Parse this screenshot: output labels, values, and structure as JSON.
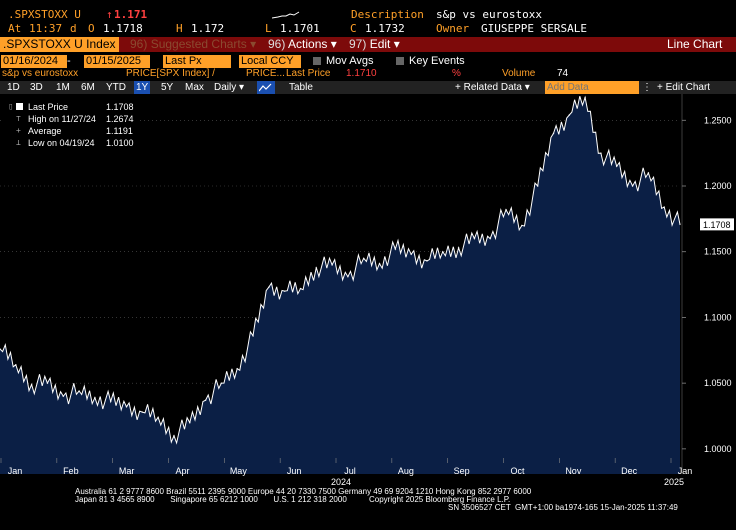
{
  "header": {
    "ticker": ".SPXSTOXX U",
    "arrow": "↑",
    "last": "1.171",
    "description_label": "Description",
    "description": "s&p vs eurostoxx",
    "time_label": "At",
    "time": "11:37",
    "d_label": "d",
    "o_label": "O",
    "open": "1.1718",
    "h_label": "H",
    "high": "1.172",
    "l_label": "L",
    "low": "1.1701",
    "c_label": "C",
    "close": "1.1732",
    "owner_label": "Owner",
    "owner": "GIUSEPPE SERSALE"
  },
  "cmdbar": {
    "security": ".SPXSTOXX U Index",
    "suggested_num": "96)",
    "suggested_label": "Suggested Charts",
    "actions_num": "96)",
    "actions_label": "Actions",
    "edit_num": "97)",
    "edit_label": "Edit",
    "chart_type": "Line Chart"
  },
  "settings": {
    "start_date": "01/16/2024",
    "end_date": "01/15/2025",
    "field": "Last Px",
    "currency": "Local CCY",
    "mov_avgs": "Mov Avgs",
    "key_events": "Key Events"
  },
  "series_bar": {
    "name": "s&p vs eurostoxx",
    "formula": "PRICE[SPX Index] /",
    "formula2": "PRICE...",
    "last_label": "Last Price",
    "last_value": "1.1710",
    "pct": "%",
    "volume_label": "Volume",
    "volume_value": "74"
  },
  "toolbar": {
    "periods": [
      "1D",
      "3D",
      "1M",
      "6M",
      "YTD",
      "1Y",
      "5Y",
      "Max"
    ],
    "selected_period": "1Y",
    "frequency": "Daily",
    "table_label": "Table",
    "related_data": "Related Data",
    "add_data_placeholder": "Add Data",
    "edit_chart": "Edit Chart"
  },
  "legend": {
    "last_price_label": "Last Price",
    "last_price": "1.1708",
    "high_label": "High on 11/27/24",
    "high": "1.2674",
    "average_label": "Average",
    "average": "1.1191",
    "low_label": "Low on 04/19/24",
    "low": "1.0100"
  },
  "chart_data": {
    "type": "area",
    "title": "",
    "xlabel": "",
    "ylabel": "",
    "ylim": [
      0.99,
      1.27
    ],
    "yticks": [
      "1.2500",
      "1.2000",
      "1.1500",
      "1.1000",
      "1.0500",
      "1.0000"
    ],
    "ytick_values": [
      1.25,
      1.2,
      1.15,
      1.1,
      1.05,
      1.0
    ],
    "month_labels": [
      "Jan",
      "Feb",
      "Mar",
      "Apr",
      "May",
      "Jun",
      "Jul",
      "Aug",
      "Sep",
      "Oct",
      "Nov",
      "Dec",
      "Jan"
    ],
    "year_labels": [
      "2024",
      "2025"
    ],
    "last_label": "1.1708",
    "colors": {
      "fill": "#0b1f45",
      "line": "#ffffff",
      "label_bg": "#ffffff"
    },
    "x": [
      "01/16/24",
      "01/24/24",
      "02/01/24",
      "02/09/24",
      "02/19/24",
      "02/27/24",
      "03/06/24",
      "03/14/24",
      "03/22/24",
      "04/01/24",
      "04/09/24",
      "04/19/24",
      "04/29/24",
      "05/07/24",
      "05/15/24",
      "05/23/24",
      "06/03/24",
      "06/11/24",
      "06/19/24",
      "06/27/24",
      "07/08/24",
      "07/16/24",
      "07/24/24",
      "08/01/24",
      "08/09/24",
      "08/19/24",
      "08/27/24",
      "09/05/24",
      "09/13/24",
      "09/23/24",
      "10/01/24",
      "10/09/24",
      "10/17/24",
      "10/25/24",
      "11/04/24",
      "11/12/24",
      "11/20/24",
      "11/27/24",
      "12/05/24",
      "12/13/24",
      "12/23/24",
      "01/02/25",
      "01/09/25",
      "01/15/25"
    ],
    "values": [
      1.076,
      1.064,
      1.049,
      1.05,
      1.04,
      1.044,
      1.039,
      1.036,
      1.032,
      1.028,
      1.024,
      1.01,
      1.02,
      1.037,
      1.05,
      1.061,
      1.086,
      1.123,
      1.12,
      1.122,
      1.138,
      1.14,
      1.131,
      1.145,
      1.141,
      1.152,
      1.148,
      1.143,
      1.15,
      1.153,
      1.16,
      1.16,
      1.182,
      1.17,
      1.2,
      1.24,
      1.254,
      1.2674,
      1.225,
      1.215,
      1.2,
      1.21,
      1.184,
      1.1708
    ]
  }
}
